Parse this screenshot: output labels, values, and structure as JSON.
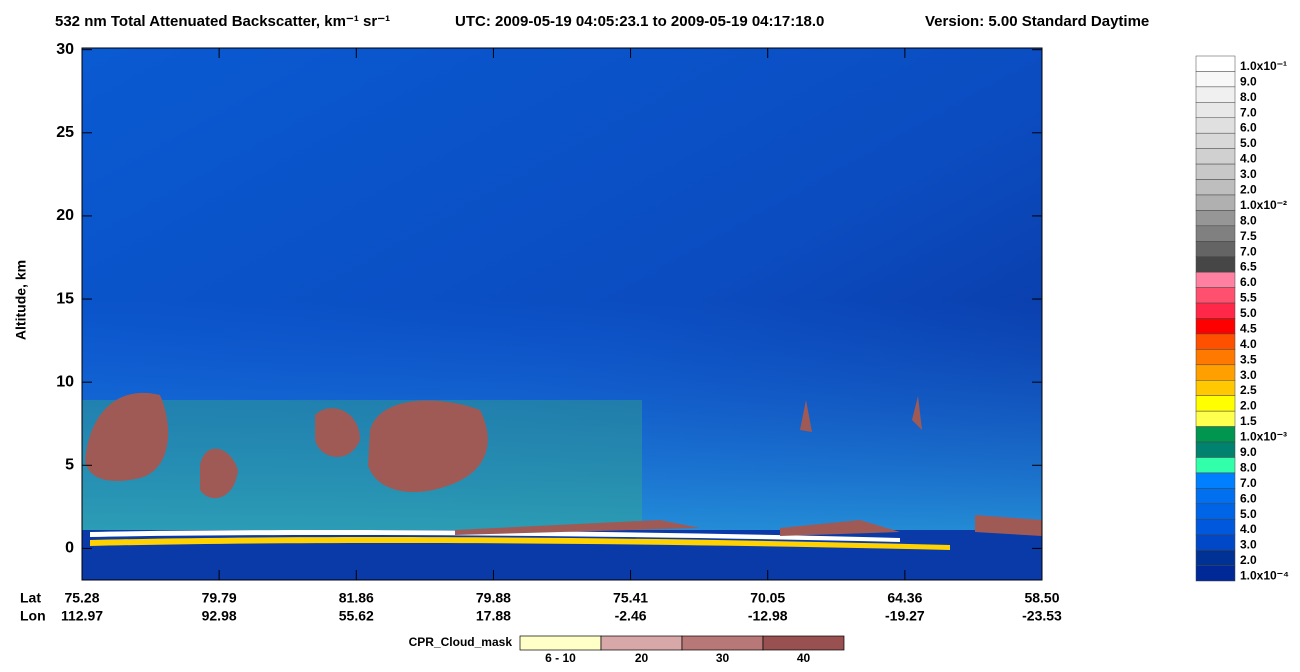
{
  "chart_data": {
    "type": "heatmap",
    "title": "532 nm Total Attenuated Backscatter, km⁻¹ sr⁻¹",
    "time_range": "UTC:  2009-05-19 04:05:23.1  to  2009-05-19 04:17:18.0",
    "version": "Version: 5.00  Standard  Daytime",
    "ylabel": "Altitude, km",
    "ylim": [
      -1.9,
      30.1
    ],
    "yticks": [
      0,
      5,
      10,
      15,
      20,
      25,
      30
    ],
    "x_rows": [
      {
        "label": "Lat",
        "categories": [
          "75.28",
          "79.79",
          "81.86",
          "79.88",
          "75.41",
          "70.05",
          "64.36",
          "58.50"
        ]
      },
      {
        "label": "Lon",
        "categories": [
          "112.97",
          "92.98",
          "55.62",
          "17.88",
          "-2.46",
          "-12.98",
          "-19.27",
          "-23.53"
        ]
      }
    ],
    "colorbar": {
      "labels": [
        "1.0x10⁻¹",
        "9.0",
        "8.0",
        "7.0",
        "6.0",
        "5.0",
        "4.0",
        "3.0",
        "2.0",
        "1.0x10⁻²",
        "8.0",
        "7.5",
        "7.0",
        "6.5",
        "6.0",
        "5.5",
        "5.0",
        "4.5",
        "4.0",
        "3.5",
        "3.0",
        "2.5",
        "2.0",
        "1.5",
        "1.0x10⁻³",
        "9.0",
        "8.0",
        "7.0",
        "6.0",
        "5.0",
        "4.0",
        "3.0",
        "2.0",
        "1.0x10⁻⁴"
      ],
      "colors": [
        "#ffffff",
        "#f8f8f8",
        "#f0f0f0",
        "#e8e8e8",
        "#e0e0e0",
        "#d8d8d8",
        "#d0d0d0",
        "#c8c8c8",
        "#bebebe",
        "#b0b0b0",
        "#969696",
        "#808080",
        "#646464",
        "#464646",
        "#ff80a0",
        "#ff5070",
        "#ff2848",
        "#ff0000",
        "#ff5000",
        "#ff7800",
        "#ffa000",
        "#ffc800",
        "#ffff00",
        "#ffff50",
        "#009650",
        "#00826e",
        "#32ffaa",
        "#0080ff",
        "#0070f0",
        "#0064e6",
        "#0058dc",
        "#0048c8",
        "#003296",
        "#002896"
      ]
    },
    "cpr_legend": {
      "title": "CPR_Cloud_mask",
      "labels": [
        "6 - 10",
        "20",
        "30",
        "40"
      ],
      "colors": [
        "#ffffc8",
        "#d8a8a8",
        "#b87878",
        "#985050"
      ]
    }
  }
}
